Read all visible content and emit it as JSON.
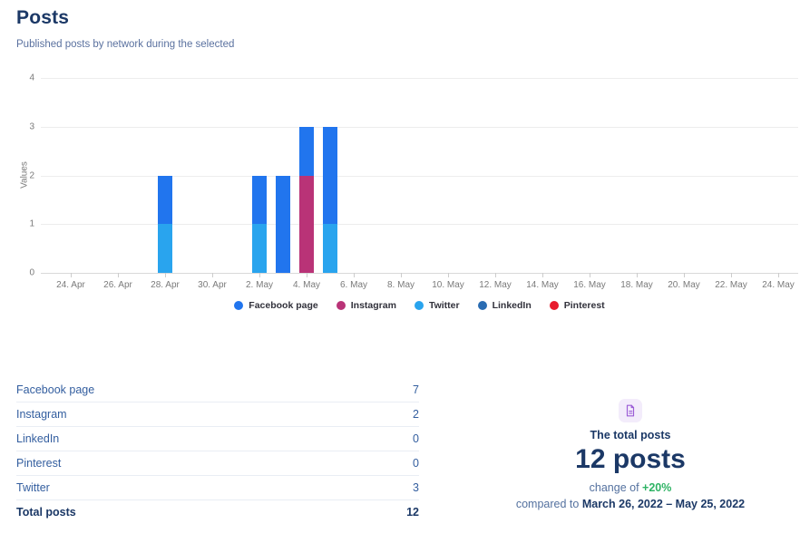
{
  "page": {
    "title": "Posts",
    "subtitle": "Published posts by network during the selected"
  },
  "chart_data": {
    "type": "stacked-bar",
    "title": "Published posts by network",
    "xlabel": "",
    "ylabel": "Values",
    "ylim": [
      0,
      4
    ],
    "yticks": [
      0,
      1,
      2,
      3,
      4
    ],
    "grid": true,
    "legend_position": "bottom",
    "xticks": [
      "24. Apr",
      "26. Apr",
      "28. Apr",
      "30. Apr",
      "2. May",
      "4. May",
      "6. May",
      "8. May",
      "10. May",
      "12. May",
      "14. May",
      "16. May",
      "18. May",
      "20. May",
      "22. May",
      "24. May"
    ],
    "tick_step_days": 2,
    "series_colors": {
      "Facebook page": "#2175ee",
      "Instagram": "#b93377",
      "Twitter": "#29a4ee",
      "LinkedIn": "#2a6cb2",
      "Pinterest": "#e81c2d"
    },
    "bars": [
      {
        "date": "28. Apr",
        "day_index": 4,
        "segments": [
          {
            "name": "Twitter",
            "value": 1
          },
          {
            "name": "Facebook page",
            "value": 1
          }
        ]
      },
      {
        "date": "2. May",
        "day_index": 8,
        "segments": [
          {
            "name": "Twitter",
            "value": 1
          },
          {
            "name": "Facebook page",
            "value": 1
          }
        ]
      },
      {
        "date": "3. May",
        "day_index": 9,
        "segments": [
          {
            "name": "Facebook page",
            "value": 2
          }
        ]
      },
      {
        "date": "4. May",
        "day_index": 10,
        "segments": [
          {
            "name": "Instagram",
            "value": 2
          },
          {
            "name": "Facebook page",
            "value": 1
          }
        ]
      },
      {
        "date": "5. May",
        "day_index": 11,
        "segments": [
          {
            "name": "Twitter",
            "value": 1
          },
          {
            "name": "Facebook page",
            "value": 2
          }
        ]
      }
    ],
    "legend": [
      {
        "name": "Facebook page",
        "color": "#2175ee"
      },
      {
        "name": "Instagram",
        "color": "#b93377"
      },
      {
        "name": "Twitter",
        "color": "#29a4ee"
      },
      {
        "name": "LinkedIn",
        "color": "#2a6cb2"
      },
      {
        "name": "Pinterest",
        "color": "#e81c2d"
      }
    ]
  },
  "table": {
    "rows": [
      {
        "label": "Facebook page",
        "value": "7"
      },
      {
        "label": "Instagram",
        "value": "2"
      },
      {
        "label": "LinkedIn",
        "value": "0"
      },
      {
        "label": "Pinterest",
        "value": "0"
      },
      {
        "label": "Twitter",
        "value": "3"
      }
    ],
    "total": {
      "label": "Total posts",
      "value": "12"
    }
  },
  "summary": {
    "icon": "document-icon",
    "icon_color": "#9b5cd6",
    "icon_bg": "#f3ecfb",
    "heading": "The total posts",
    "big_value": "12 posts",
    "change_prefix": "change of ",
    "change_value": "+20%",
    "change_color": "#2eb364",
    "compare_prefix": "compared to ",
    "compare_range": "March 26, 2022 – May 25, 2022"
  }
}
